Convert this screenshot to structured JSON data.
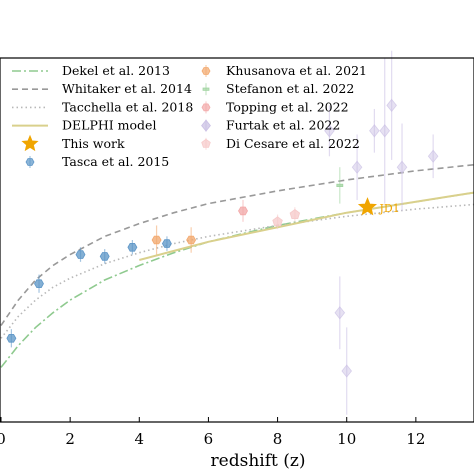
{
  "chart_data": {
    "type": "scatter",
    "xlabel": "redshift (z)",
    "xlim": [
      0,
      14
    ],
    "ylim": [
      0,
      10
    ],
    "xticks": [
      "0",
      "2",
      "4",
      "6",
      "8",
      "10",
      "12"
    ],
    "models": [
      {
        "name": "Dekel et al. 2013",
        "style": "dashdot",
        "color": "#8fca8f",
        "points": [
          [
            0,
            1.5
          ],
          [
            0.5,
            2.1
          ],
          [
            1,
            2.6
          ],
          [
            1.5,
            3.0
          ],
          [
            2,
            3.35
          ],
          [
            3,
            3.9
          ],
          [
            4,
            4.3
          ],
          [
            5,
            4.65
          ],
          [
            6,
            4.95
          ],
          [
            8,
            5.4
          ],
          [
            10,
            5.75
          ],
          [
            12,
            6.05
          ],
          [
            14,
            6.35
          ]
        ]
      },
      {
        "name": "Whitaker et al. 2014",
        "style": "dashed",
        "color": "#999999",
        "points": [
          [
            0,
            2.65
          ],
          [
            0.5,
            3.35
          ],
          [
            1,
            3.9
          ],
          [
            1.5,
            4.3
          ],
          [
            2,
            4.6
          ],
          [
            3,
            5.1
          ],
          [
            4,
            5.45
          ],
          [
            5,
            5.75
          ],
          [
            6,
            6.0
          ],
          [
            8,
            6.35
          ],
          [
            10,
            6.65
          ],
          [
            12,
            6.9
          ],
          [
            14,
            7.1
          ]
        ]
      },
      {
        "name": "Tacchella et al. 2018",
        "style": "dotted",
        "color": "#b8b8b8",
        "points": [
          [
            0,
            2.3
          ],
          [
            0.5,
            2.9
          ],
          [
            1,
            3.35
          ],
          [
            1.5,
            3.7
          ],
          [
            2,
            3.95
          ],
          [
            3,
            4.35
          ],
          [
            4,
            4.65
          ],
          [
            5,
            4.9
          ],
          [
            6,
            5.1
          ],
          [
            8,
            5.4
          ],
          [
            10,
            5.65
          ],
          [
            12,
            5.85
          ],
          [
            14,
            6.0
          ]
        ]
      },
      {
        "name": "DELPHI model",
        "style": "solid",
        "color": "#d9d08c",
        "points": [
          [
            4,
            4.45
          ],
          [
            5,
            4.7
          ],
          [
            6,
            4.95
          ],
          [
            7,
            5.15
          ],
          [
            8,
            5.35
          ],
          [
            9,
            5.55
          ],
          [
            10,
            5.75
          ],
          [
            11,
            5.9
          ],
          [
            12,
            6.05
          ],
          [
            13,
            6.2
          ],
          [
            14,
            6.35
          ]
        ]
      }
    ],
    "observations": [
      {
        "name": "This work",
        "marker": "star",
        "color": "#f0a500",
        "points": [
          {
            "x": 10.6,
            "y": 5.9,
            "err": 0,
            "label": "JD1"
          }
        ]
      },
      {
        "name": "Tasca et al. 2015",
        "marker": "hexagon",
        "color": "#5a94c6",
        "points": [
          {
            "x": 0.3,
            "y": 2.3,
            "err": 0.25
          },
          {
            "x": 1.1,
            "y": 3.8,
            "err": 0.25
          },
          {
            "x": 2.3,
            "y": 4.6,
            "err": 0.2
          },
          {
            "x": 3.0,
            "y": 4.55,
            "err": 0.2
          },
          {
            "x": 3.8,
            "y": 4.8,
            "err": 0.2
          },
          {
            "x": 4.8,
            "y": 4.9,
            "err": 0.2
          }
        ]
      },
      {
        "name": "Khusanova et al. 2021",
        "marker": "hexagon",
        "color": "#f2a66a",
        "points": [
          {
            "x": 4.5,
            "y": 5.0,
            "err": 0.4
          },
          {
            "x": 5.5,
            "y": 5.0,
            "err": 0.35
          }
        ]
      },
      {
        "name": "Stefanon et al. 2022",
        "marker": "bar",
        "color": "#9ed39e",
        "points": [
          {
            "x": 9.8,
            "y": 6.5,
            "err": 0.5
          }
        ]
      },
      {
        "name": "Topping et al. 2022",
        "marker": "hexagon",
        "color": "#f2a6a6",
        "points": [
          {
            "x": 7.0,
            "y": 5.8,
            "err": 0.3
          }
        ]
      },
      {
        "name": "Furtak et al. 2022",
        "marker": "diamond",
        "color": "#c8bde3",
        "points": [
          {
            "x": 9.5,
            "y": 8.0,
            "err": 0.7
          },
          {
            "x": 9.8,
            "y": 3.0,
            "err": 1.0
          },
          {
            "x": 10.0,
            "y": 1.4,
            "err": 1.2
          },
          {
            "x": 10.3,
            "y": 7.0,
            "err": 0.9
          },
          {
            "x": 10.8,
            "y": 8.0,
            "err": 0.6
          },
          {
            "x": 11.1,
            "y": 8.0,
            "err": 2.0
          },
          {
            "x": 11.3,
            "y": 8.7,
            "err": 1.5
          },
          {
            "x": 11.6,
            "y": 7.0,
            "err": 1.2
          },
          {
            "x": 12.5,
            "y": 7.3,
            "err": 0.6
          }
        ]
      },
      {
        "name": "Di Cesare et al. 2022",
        "marker": "pentagon",
        "color": "#f6c8c8",
        "points": [
          {
            "x": 8.5,
            "y": 5.7,
            "err": 0.2
          },
          {
            "x": 8.0,
            "y": 5.5,
            "err": 0.2
          }
        ]
      }
    ],
    "legend_columns": [
      [
        "Dekel et al. 2013",
        "Whitaker et al. 2014",
        "Tacchella et al. 2018",
        "DELPHI model",
        "This work",
        "Tasca et al. 2015"
      ],
      [
        "Khusanova et al. 2021",
        "Stefanon et al. 2022",
        "Topping et al. 2022",
        "Furtak et al. 2022",
        "Di Cesare et al. 2022"
      ]
    ],
    "legend_position": "top-left",
    "grid": false
  }
}
